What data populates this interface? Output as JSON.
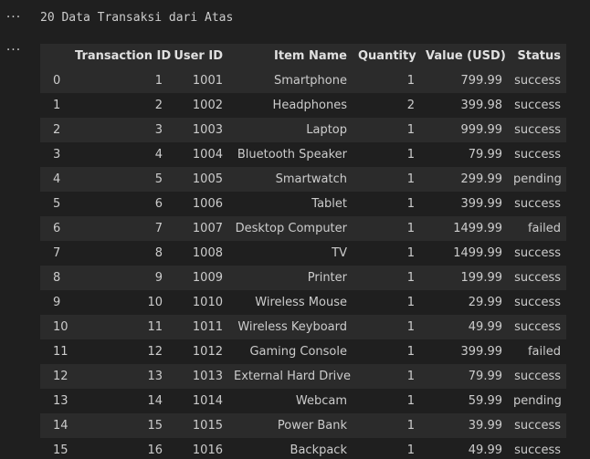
{
  "gutter_symbol": "···",
  "output_text": "20 Data Transaksi dari Atas",
  "table": {
    "columns": [
      "",
      "Transaction ID",
      "User ID",
      "Item Name",
      "Quantity",
      "Value (USD)",
      "Status"
    ],
    "rows": [
      [
        "0",
        "1",
        "1001",
        "Smartphone",
        "1",
        "799.99",
        "success"
      ],
      [
        "1",
        "2",
        "1002",
        "Headphones",
        "2",
        "399.98",
        "success"
      ],
      [
        "2",
        "3",
        "1003",
        "Laptop",
        "1",
        "999.99",
        "success"
      ],
      [
        "3",
        "4",
        "1004",
        "Bluetooth Speaker",
        "1",
        "79.99",
        "success"
      ],
      [
        "4",
        "5",
        "1005",
        "Smartwatch",
        "1",
        "299.99",
        "pending"
      ],
      [
        "5",
        "6",
        "1006",
        "Tablet",
        "1",
        "399.99",
        "success"
      ],
      [
        "6",
        "7",
        "1007",
        "Desktop Computer",
        "1",
        "1499.99",
        "failed"
      ],
      [
        "7",
        "8",
        "1008",
        "TV",
        "1",
        "1499.99",
        "success"
      ],
      [
        "8",
        "9",
        "1009",
        "Printer",
        "1",
        "199.99",
        "success"
      ],
      [
        "9",
        "10",
        "1010",
        "Wireless Mouse",
        "1",
        "29.99",
        "success"
      ],
      [
        "10",
        "11",
        "1011",
        "Wireless Keyboard",
        "1",
        "49.99",
        "success"
      ],
      [
        "11",
        "12",
        "1012",
        "Gaming Console",
        "1",
        "399.99",
        "failed"
      ],
      [
        "12",
        "13",
        "1013",
        "External Hard Drive",
        "1",
        "79.99",
        "success"
      ],
      [
        "13",
        "14",
        "1014",
        "Webcam",
        "1",
        "59.99",
        "pending"
      ],
      [
        "14",
        "15",
        "1015",
        "Power Bank",
        "1",
        "39.99",
        "success"
      ],
      [
        "15",
        "16",
        "1016",
        "Backpack",
        "1",
        "49.99",
        "success"
      ]
    ]
  }
}
